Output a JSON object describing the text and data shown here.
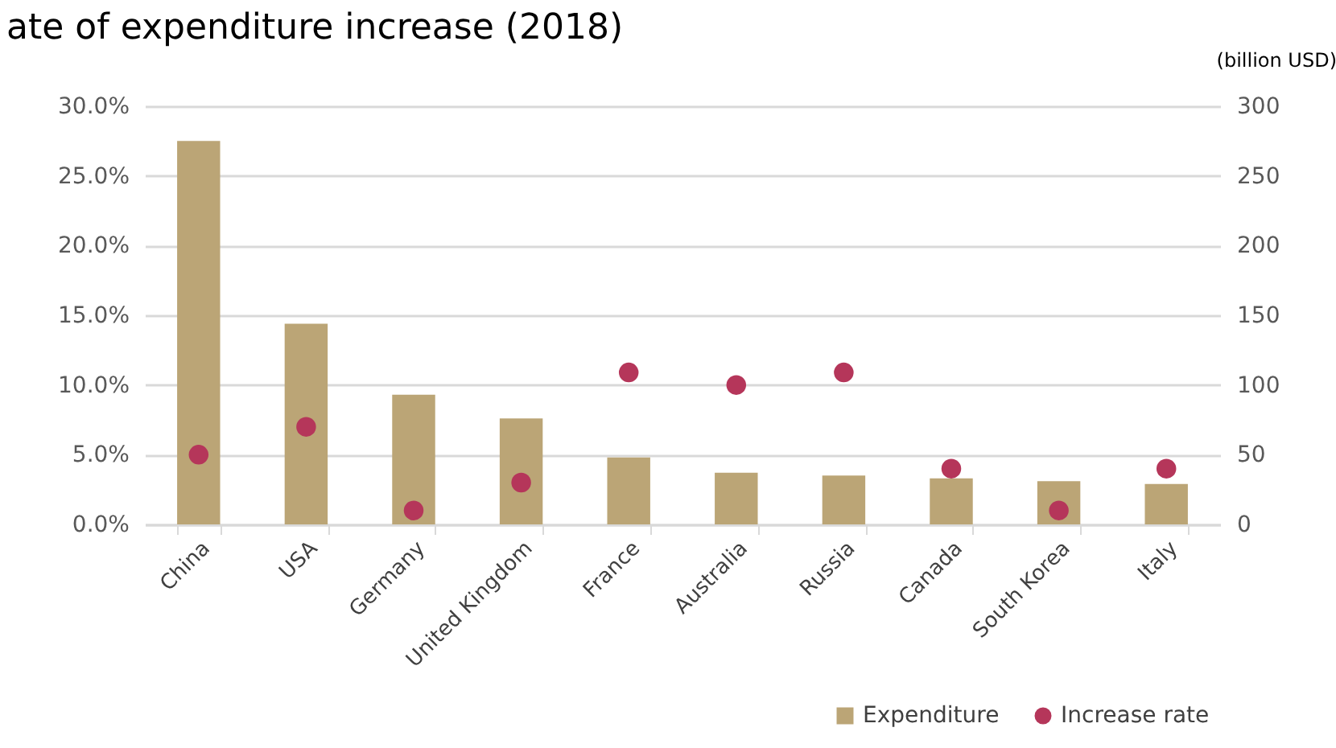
{
  "chart_data": {
    "type": "bar",
    "title": "ate of expenditure increase (2018)",
    "y2label": "(billion USD)",
    "categories": [
      "China",
      "USA",
      "Germany",
      "United Kingdom",
      "France",
      "Australia",
      "Russia",
      "Canada",
      "South Korea",
      "Italy"
    ],
    "series": [
      {
        "name": "Expenditure",
        "axis": "y2",
        "color": "#bba576",
        "values": [
          275,
          144,
          93,
          76,
          48,
          37,
          35,
          33,
          31,
          29
        ]
      },
      {
        "name": "Increase rate",
        "type": "scatter",
        "color": "#b5365a",
        "values": [
          5.0,
          7.0,
          1.0,
          3.0,
          10.9,
          10.0,
          10.9,
          4.0,
          1.0,
          4.0
        ]
      }
    ],
    "ylim": [
      0,
      30
    ],
    "yticks": [
      {
        "value": 0,
        "label": "0.0%"
      },
      {
        "value": 5,
        "label": "5.0%"
      },
      {
        "value": 10,
        "label": "10.0%"
      },
      {
        "value": 15,
        "label": "15.0%"
      },
      {
        "value": 20,
        "label": "20.0%"
      },
      {
        "value": 25,
        "label": "25.0%"
      },
      {
        "value": 30,
        "label": "30.0%"
      }
    ],
    "y2lim": [
      0,
      300
    ],
    "y2ticks": [
      0,
      50,
      100,
      150,
      200,
      250,
      300
    ],
    "grid": "y",
    "legend": "bottom right",
    "marker": "circle"
  }
}
